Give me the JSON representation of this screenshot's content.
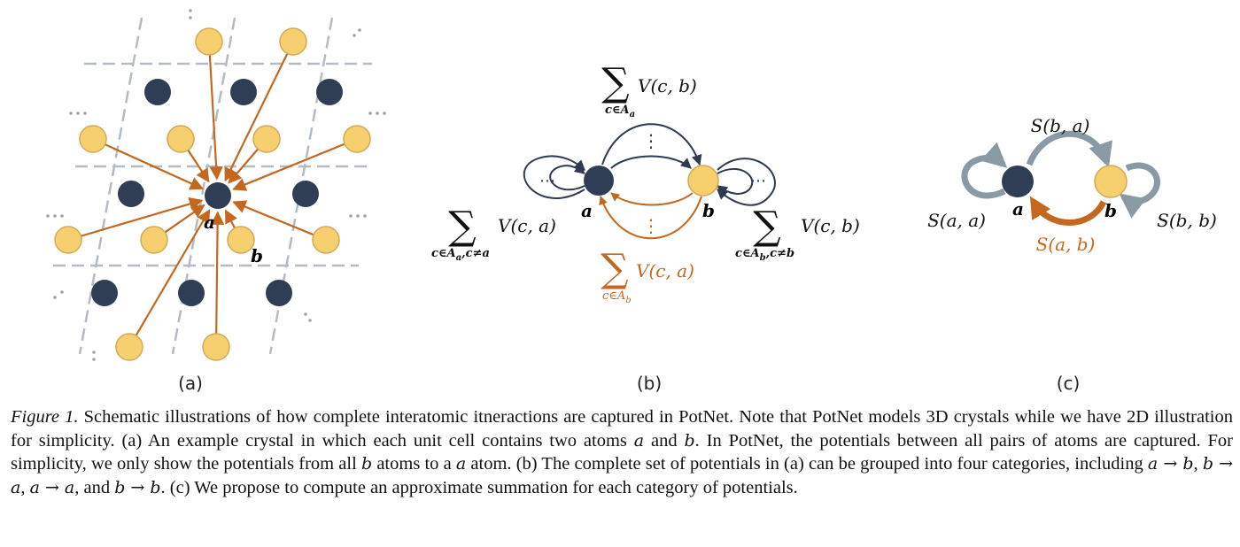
{
  "panel_labels": {
    "a": "(a)",
    "b": "(b)",
    "c": "(c)"
  },
  "atoms": {
    "a": "a",
    "b": "b"
  },
  "panel_b": {
    "top_sum": {
      "op": "∑",
      "sub": "c∈A",
      "sub_idx": "a",
      "term": "V(c, b)"
    },
    "left_sum": {
      "op": "∑",
      "sub": "c∈A",
      "sub_idx": "a",
      "sub_tail": ",c≠a",
      "term": "V(c, a)"
    },
    "right_sum": {
      "op": "∑",
      "sub": "c∈A",
      "sub_idx": "b",
      "sub_tail": ",c≠b",
      "term": "V(c, b)"
    },
    "bottom_sum": {
      "op": "∑",
      "sub": "c∈A",
      "sub_idx": "b",
      "term": "V(c, a)"
    },
    "dots": "⋯",
    "vdots": "⋮"
  },
  "panel_c": {
    "s_ba": "S(b, a)",
    "s_aa": "S(a, a)",
    "s_ab": "S(a, b)",
    "s_bb": "S(b, b)"
  },
  "caption": {
    "fig_label": "Figure 1.",
    "seg1": " Schematic illustrations of how complete interatomic itneractions are captured in PotNet. Note that PotNet models 3D crystals while we have 2D illustration for simplicity. (a) An example crystal in which each unit cell contains two atoms ",
    "a1": "a",
    "seg2": " and ",
    "b1": "b",
    "seg3": ". In PotNet, the potentials between all pairs of atoms are captured. For simplicity, we only show the potentials from all ",
    "b2": "b",
    "seg4": " atoms to a ",
    "a2": "a",
    "seg5": " atom. (b) The complete set of potentials in (a) can be grouped into four categories, including ",
    "cat1": "a → b",
    "sep1": ", ",
    "cat2": "b → a",
    "sep2": ", ",
    "cat3": "a → a",
    "sep3": ", and ",
    "cat4": "b → b",
    "seg6": ". (c) We propose to compute an approximate summation for each category of potentials."
  },
  "colors": {
    "dark_atom": "#2f3d55",
    "light_atom": "#f6d06e",
    "orange": "#c5681f",
    "navy": "#2e3a52",
    "gray_arrow": "#8a9aa4"
  }
}
